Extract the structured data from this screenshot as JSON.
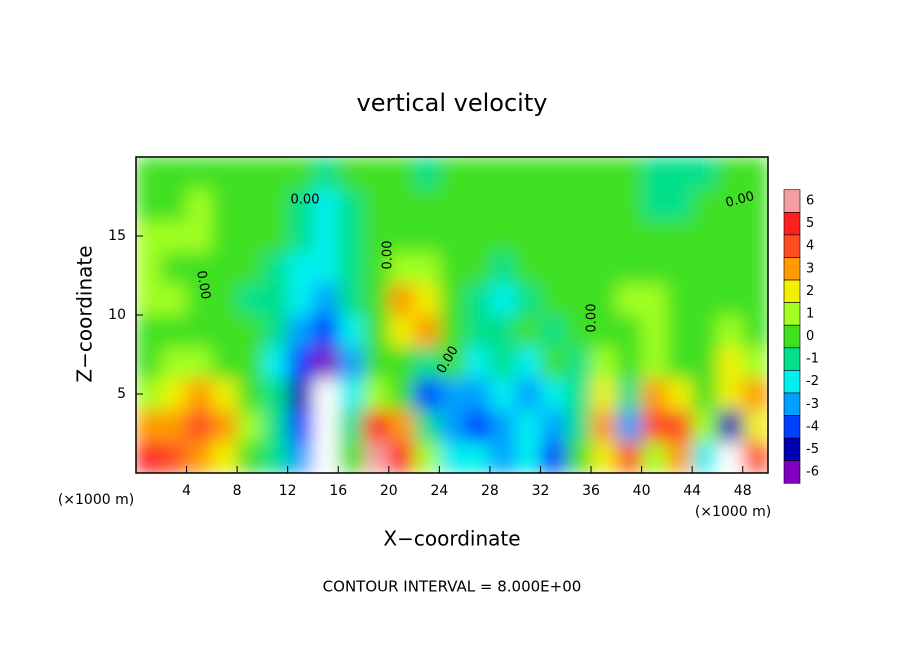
{
  "chart_data": {
    "type": "heatmap",
    "title": "vertical velocity",
    "x_label": "X−coordinate",
    "y_label": "Z−coordinate",
    "x_unit": "(×1000 m)",
    "x_unit_right": "(×1000 m)",
    "note": "CONTOUR INTERVAL = 8.000E+00",
    "contour_labels": [
      "0.00",
      "0.00",
      "0.00",
      "0.00",
      "0.00",
      "0.00"
    ],
    "xlim": [
      0,
      50
    ],
    "ylim": [
      0,
      20
    ],
    "xticks": [
      4,
      8,
      12,
      16,
      20,
      24,
      28,
      32,
      36,
      40,
      44,
      48
    ],
    "yticks": [
      5,
      10,
      15
    ],
    "x": [
      1,
      3,
      5,
      7,
      9,
      11,
      13,
      15,
      17,
      19,
      21,
      23,
      25,
      27,
      29,
      31,
      33,
      35,
      37,
      39,
      41,
      43,
      45,
      47,
      49
    ],
    "y": [
      1,
      3,
      5,
      7,
      9,
      11,
      13,
      15,
      17,
      19
    ],
    "values": [
      [
        5,
        4,
        3,
        2,
        0,
        -1,
        -3,
        -7,
        0,
        6,
        5,
        1,
        -2,
        -2,
        -3,
        -2,
        -4,
        0,
        2,
        4,
        1,
        3,
        -2,
        -7,
        4
      ],
      [
        3,
        3,
        4,
        3,
        1,
        -1,
        -4,
        -7,
        -1,
        5,
        3,
        -1,
        -3,
        -4,
        -3,
        -2,
        -3,
        -1,
        3,
        -3,
        4,
        4,
        1,
        -5,
        2
      ],
      [
        1,
        2,
        3,
        2,
        0,
        -1,
        -5,
        -7,
        -2,
        1,
        0,
        -4,
        -3,
        -3,
        -2,
        -3,
        -2,
        -1,
        2,
        -1,
        3,
        2,
        0,
        2,
        3
      ],
      [
        0,
        1,
        1,
        0,
        0,
        -2,
        -4,
        -6,
        -3,
        0,
        0,
        -1,
        0,
        -2,
        -1,
        -2,
        0,
        -1,
        1,
        0,
        1,
        0,
        0,
        2,
        1
      ],
      [
        0,
        0,
        0,
        0,
        0,
        -1,
        -3,
        -4,
        -2,
        0,
        2,
        3,
        0,
        -1,
        -1,
        0,
        -1,
        0,
        0,
        0,
        1,
        0,
        0,
        1,
        0
      ],
      [
        1,
        1,
        0,
        0,
        -1,
        -1,
        -2,
        -3,
        -1,
        0,
        3,
        2,
        0,
        -1,
        -2,
        -1,
        0,
        0,
        0,
        1,
        1,
        0,
        0,
        0,
        0
      ],
      [
        1,
        0,
        0,
        0,
        0,
        -1,
        -2,
        -2,
        -1,
        0,
        1,
        1,
        0,
        0,
        -1,
        0,
        0,
        0,
        0,
        0,
        0,
        0,
        0,
        0,
        0
      ],
      [
        1,
        1,
        1,
        0,
        0,
        0,
        -1,
        -2,
        -1,
        0,
        0,
        0,
        0,
        0,
        0,
        0,
        0,
        0,
        0,
        0,
        0,
        0,
        0,
        0,
        0
      ],
      [
        0,
        0,
        1,
        0,
        0,
        0,
        -1,
        -2,
        -1,
        0,
        0,
        0,
        0,
        0,
        0,
        0,
        0,
        0,
        0,
        0,
        -1,
        -1,
        0,
        0,
        0
      ],
      [
        0,
        0,
        0,
        0,
        0,
        0,
        0,
        -1,
        0,
        0,
        0,
        -1,
        0,
        0,
        0,
        0,
        0,
        0,
        0,
        0,
        -1,
        -1,
        -1,
        0,
        0
      ]
    ],
    "colorbar_ticks": [
      6,
      5,
      4,
      3,
      2,
      1,
      0,
      -1,
      -2,
      -3,
      -4,
      -5,
      -6
    ],
    "colorbar_colors": [
      "#f4a0a0",
      "#ff2020",
      "#ff4c20",
      "#ff9a00",
      "#f0f000",
      "#a0ff20",
      "#40e020",
      "#00e08a",
      "#00f0f0",
      "#00a0ff",
      "#0040ff",
      "#0000b4",
      "#8000c0"
    ],
    "over_color": "#ffffff"
  }
}
